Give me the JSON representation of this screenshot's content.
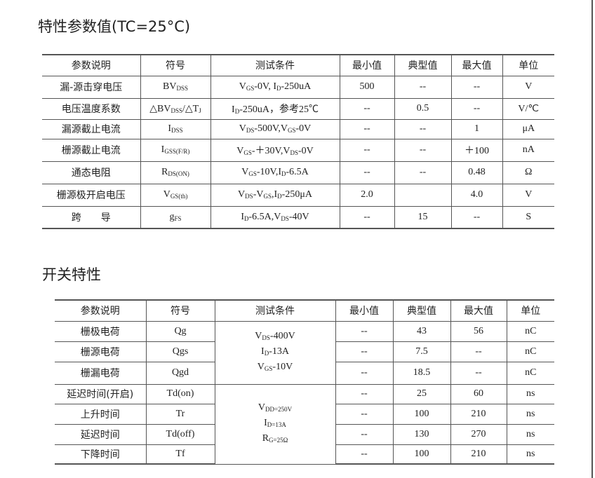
{
  "section1": {
    "title": "特性参数值(TC=25°C)",
    "headers": [
      "参数说明",
      "符号",
      "测试条件",
      "最小值",
      "典型值",
      "最大值",
      "单位"
    ],
    "rows": [
      {
        "param": "漏-源击穿电压",
        "symbol": [
          {
            "t": "BV"
          },
          {
            "t": "DSS",
            "sub": true
          }
        ],
        "cond": [
          {
            "t": "V"
          },
          {
            "t": "GS",
            "sub": true
          },
          {
            "t": "-0V, I"
          },
          {
            "t": "D",
            "sub": true
          },
          {
            "t": "-250uA"
          }
        ],
        "min": "500",
        "typ": "--",
        "max": "--",
        "unit": "V"
      },
      {
        "param": "电压温度系数",
        "symbol": [
          {
            "t": "△BV"
          },
          {
            "t": "DSS",
            "sub": true
          },
          {
            "t": "/△T"
          },
          {
            "t": "J",
            "sub": true
          }
        ],
        "cond": [
          {
            "t": "I"
          },
          {
            "t": "D",
            "sub": true
          },
          {
            "t": "-250uA，参考25℃"
          }
        ],
        "min": "--",
        "typ": "0.5",
        "max": "--",
        "unit": "V/℃"
      },
      {
        "param": "漏源截止电流",
        "symbol": [
          {
            "t": "I"
          },
          {
            "t": "DSS",
            "sub": true
          }
        ],
        "cond": [
          {
            "t": "V"
          },
          {
            "t": "DS",
            "sub": true
          },
          {
            "t": "-500V,V"
          },
          {
            "t": "GS",
            "sub": true
          },
          {
            "t": "-0V"
          }
        ],
        "min": "--",
        "typ": "--",
        "max": "1",
        "unit": "μA"
      },
      {
        "param": "栅源截止电流",
        "symbol": [
          {
            "t": "I"
          },
          {
            "t": "GSS(F/R)",
            "sub": true
          }
        ],
        "cond": [
          {
            "t": "V"
          },
          {
            "t": "GS",
            "sub": true
          },
          {
            "t": "-＋30V,V"
          },
          {
            "t": "DS",
            "sub": true
          },
          {
            "t": "-0V"
          }
        ],
        "min": "--",
        "typ": "--",
        "max": "＋100",
        "unit": "nA"
      },
      {
        "param": "通态电阻",
        "symbol": [
          {
            "t": "R"
          },
          {
            "t": "DS(ON)",
            "sub": true
          }
        ],
        "cond": [
          {
            "t": "V"
          },
          {
            "t": "GS",
            "sub": true
          },
          {
            "t": "-10V,I"
          },
          {
            "t": "D",
            "sub": true
          },
          {
            "t": "-6.5A"
          }
        ],
        "min": "--",
        "typ": "--",
        "max": "0.48",
        "unit": "Ω"
      },
      {
        "param": "栅源极开启电压",
        "symbol": [
          {
            "t": "V"
          },
          {
            "t": "GS(th)",
            "sub": true
          }
        ],
        "cond": [
          {
            "t": "V"
          },
          {
            "t": "DS",
            "sub": true
          },
          {
            "t": "-V"
          },
          {
            "t": "GS",
            "sub": true
          },
          {
            "t": ",I"
          },
          {
            "t": "D",
            "sub": true
          },
          {
            "t": "-250μA"
          }
        ],
        "min": "2.0",
        "typ": "",
        "max": "4.0",
        "unit": "V"
      },
      {
        "param": "跨　　导",
        "symbol": [
          {
            "t": "g"
          },
          {
            "t": "FS",
            "sub": true
          }
        ],
        "cond": [
          {
            "t": "I"
          },
          {
            "t": "D",
            "sub": true
          },
          {
            "t": "-6.5A,V"
          },
          {
            "t": "DS",
            "sub": true
          },
          {
            "t": "-40V"
          }
        ],
        "min": "--",
        "typ": "15",
        "max": "--",
        "unit": "S"
      }
    ]
  },
  "section2": {
    "title": "开关特性",
    "headers": [
      "参数说明",
      "符号",
      "测试条件",
      "最小值",
      "典型值",
      "最大值",
      "单位"
    ],
    "groups": [
      {
        "cond": [
          [
            {
              "t": "V"
            },
            {
              "t": "DS",
              "sub": true
            },
            {
              "t": "-400V"
            }
          ],
          [
            {
              "t": "I"
            },
            {
              "t": "D",
              "sub": true
            },
            {
              "t": "-13A"
            }
          ],
          [
            {
              "t": "V"
            },
            {
              "t": "GS",
              "sub": true
            },
            {
              "t": "-10V"
            }
          ]
        ],
        "rows": [
          {
            "param": "栅极电荷",
            "symbol": "Qg",
            "min": "--",
            "typ": "43",
            "max": "56",
            "unit": "nC"
          },
          {
            "param": "栅源电荷",
            "symbol": "Qgs",
            "min": "--",
            "typ": "7.5",
            "max": "--",
            "unit": "nC"
          },
          {
            "param": "栅漏电荷",
            "symbol": "Qgd",
            "min": "--",
            "typ": "18.5",
            "max": "--",
            "unit": "nC"
          }
        ]
      },
      {
        "cond": [
          [
            {
              "t": "V"
            },
            {
              "t": "DD=250V",
              "sub": true
            }
          ],
          [
            {
              "t": "I"
            },
            {
              "t": "D=13A",
              "sub": true
            }
          ],
          [
            {
              "t": "R"
            },
            {
              "t": "G=25Ω",
              "sub": true
            }
          ]
        ],
        "rows": [
          {
            "param": "延迟时间(开启)",
            "symbol": "Td(on)",
            "min": "--",
            "typ": "25",
            "max": "60",
            "unit": "ns"
          },
          {
            "param": "上升时间",
            "symbol": "Tr",
            "min": "--",
            "typ": "100",
            "max": "210",
            "unit": "ns"
          },
          {
            "param": "延迟时间",
            "symbol": "Td(off)",
            "min": "--",
            "typ": "130",
            "max": "270",
            "unit": "ns"
          },
          {
            "param": "下降时间",
            "symbol": "Tf",
            "min": "--",
            "typ": "100",
            "max": "210",
            "unit": "ns"
          }
        ]
      }
    ]
  }
}
